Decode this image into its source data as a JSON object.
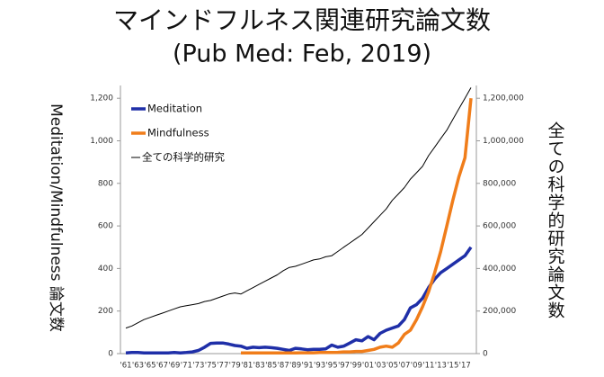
{
  "chart_data": {
    "type": "line",
    "title": "マインドフルネス関連研究論文数",
    "subtitle": "(Pub Med: Feb, 2019)",
    "y_label": "Meditation/Mindfulness 論文数",
    "y2_label": "全ての科学的研究論文数",
    "categories": [
      "'61",
      null,
      "'63",
      null,
      "'65",
      null,
      "'67",
      null,
      "'69",
      null,
      "'71",
      null,
      "'73",
      null,
      "'75",
      null,
      "'77",
      null,
      "'79",
      null,
      "'81",
      null,
      "'83",
      null,
      "'85",
      null,
      "'87",
      null,
      "'89",
      null,
      "'91",
      null,
      "'93",
      null,
      "'95",
      null,
      "'97",
      null,
      "'99",
      null,
      "'01",
      null,
      "'03",
      null,
      "'05",
      null,
      "'07",
      null,
      "'09",
      null,
      "'11",
      null,
      "'13",
      null,
      "'15",
      null,
      "'17",
      null
    ],
    "series": [
      {
        "name": "Meditation",
        "color": "#1f2fa8",
        "width": 3.5,
        "values": [
          3,
          5,
          5,
          3,
          3,
          3,
          3,
          3,
          5,
          3,
          5,
          8,
          15,
          30,
          48,
          50,
          50,
          45,
          38,
          35,
          25,
          30,
          28,
          30,
          28,
          25,
          20,
          15,
          25,
          22,
          18,
          20,
          20,
          22,
          40,
          30,
          35,
          50,
          65,
          60,
          80,
          65,
          95,
          110,
          120,
          130,
          160,
          215,
          230,
          260,
          310,
          350,
          380,
          400,
          420,
          440,
          460,
          500
        ]
      },
      {
        "name": "Mindfulness",
        "color": "#f07d1a",
        "width": 3.5,
        "values": [
          null,
          null,
          null,
          null,
          null,
          null,
          null,
          null,
          null,
          null,
          null,
          null,
          null,
          null,
          null,
          null,
          null,
          null,
          null,
          3,
          3,
          3,
          3,
          3,
          3,
          3,
          3,
          3,
          3,
          4,
          4,
          4,
          5,
          5,
          5,
          6,
          8,
          8,
          10,
          10,
          15,
          20,
          30,
          35,
          30,
          50,
          90,
          110,
          160,
          220,
          290,
          380,
          480,
          600,
          720,
          830,
          920,
          1200
        ]
      },
      {
        "name": "全ての科学的研究",
        "color": "#000000",
        "width": 1,
        "axis": "y2",
        "values": [
          120000,
          130000,
          145000,
          160000,
          170000,
          180000,
          190000,
          200000,
          210000,
          220000,
          225000,
          230000,
          235000,
          245000,
          250000,
          260000,
          270000,
          280000,
          285000,
          280000,
          295000,
          310000,
          325000,
          340000,
          355000,
          370000,
          390000,
          405000,
          410000,
          420000,
          430000,
          440000,
          445000,
          455000,
          460000,
          480000,
          500000,
          520000,
          540000,
          560000,
          590000,
          620000,
          650000,
          680000,
          720000,
          750000,
          780000,
          820000,
          850000,
          880000,
          930000,
          970000,
          1010000,
          1050000,
          1100000,
          1150000,
          1200000,
          1250000
        ]
      }
    ],
    "ylim": [
      0,
      1260
    ],
    "yticks": [
      0,
      200,
      400,
      600,
      800,
      {
        "value": 1000,
        "label": "1,000"
      },
      {
        "value": 1200,
        "label": "1,200"
      }
    ],
    "y2lim": [
      0,
      1260000
    ],
    "y2ticks": [
      0,
      {
        "value": 200000,
        "label": "200,000"
      },
      {
        "value": 400000,
        "label": "400,000"
      },
      {
        "value": 600000,
        "label": "600,000"
      },
      {
        "value": 800000,
        "label": "800,000"
      },
      {
        "value": 1000000,
        "label": "1,000,000"
      },
      {
        "value": 1200000,
        "label": "1,200,000"
      }
    ],
    "legend": "upper left"
  }
}
